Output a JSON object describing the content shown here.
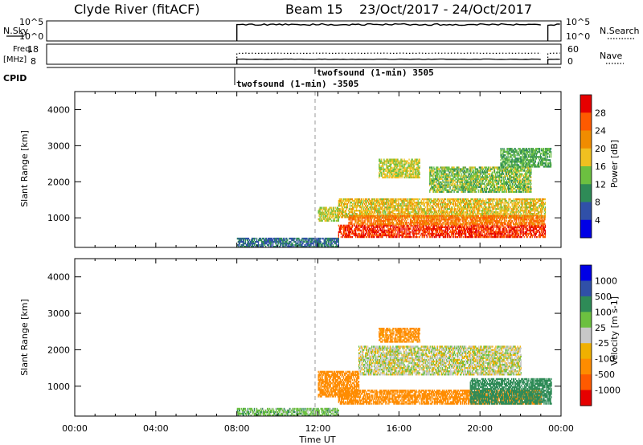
{
  "header": {
    "station": "Clyde River (fitACF)",
    "beam": "Beam 15",
    "date_range": "23/Oct/2017 - 24/Oct/2017"
  },
  "top_panels": {
    "nsky": {
      "label": "N.Sky",
      "ticks": [
        "10^5",
        "10^0"
      ],
      "right_ticks": [
        "10^5",
        "10^0"
      ],
      "right_label": "N.Search"
    },
    "freq": {
      "label": "Freq.",
      "unit": "[MHz]",
      "ticks": [
        "18",
        "8"
      ],
      "right_ticks": [
        "60",
        "0"
      ],
      "right_label": "Nave"
    },
    "cpid": {
      "label": "CPID",
      "entries": [
        "twofsound (1-min) -3505",
        "twofsound (1-min) 3505"
      ]
    }
  },
  "colors": {
    "power": [
      "#0000e6",
      "#3050a8",
      "#2e8b57",
      "#6cc040",
      "#f0c020",
      "#f08c00",
      "#ff5a00",
      "#e60000"
    ],
    "velocity": [
      "#e60000",
      "#ff5a00",
      "#ff8c00",
      "#f0b000",
      "#c8c8c8",
      "#6cc040",
      "#2e8b57",
      "#3050a8",
      "#0000e6"
    ],
    "trace": "#000000",
    "divider": "#999999"
  },
  "chart_data": [
    {
      "type": "heatmap",
      "title": "Power",
      "xlabel": "",
      "ylabel": "Slant Range [km]",
      "xlim": [
        0,
        24
      ],
      "ylim": [
        180,
        4500
      ],
      "x_ticks": [
        "00:00",
        "04:00",
        "08:00",
        "12:00",
        "16:00",
        "20:00",
        "00:00"
      ],
      "y_ticks": [
        1000,
        2000,
        3000,
        4000
      ],
      "colorbar": {
        "label": "Power [dB]",
        "ticks": [
          "4",
          "8",
          "12",
          "16",
          "20",
          "24",
          "28"
        ]
      },
      "regions": [
        {
          "x": [
            8.0,
            13.0
          ],
          "range": [
            180,
            450
          ],
          "value": 8
        },
        {
          "x": [
            12.0,
            13.0
          ],
          "range": [
            900,
            1300
          ],
          "value": 16
        },
        {
          "x": [
            13.0,
            23.2
          ],
          "range": [
            1000,
            1500
          ],
          "value": 18
        },
        {
          "x": [
            13.0,
            23.2
          ],
          "range": [
            450,
            800
          ],
          "value": 28
        },
        {
          "x": [
            13.5,
            23.2
          ],
          "range": [
            800,
            1050
          ],
          "value": 24
        },
        {
          "x": [
            15.0,
            17.0
          ],
          "range": [
            2100,
            2600
          ],
          "value": 16
        },
        {
          "x": [
            17.5,
            22.5
          ],
          "range": [
            1700,
            2400
          ],
          "value": 14
        },
        {
          "x": [
            21.0,
            23.5
          ],
          "range": [
            2400,
            2900
          ],
          "value": 12
        }
      ]
    },
    {
      "type": "heatmap",
      "title": "Velocity",
      "xlabel": "Time UT",
      "ylabel": "Slant Range [km]",
      "xlim": [
        0,
        24
      ],
      "ylim": [
        180,
        4500
      ],
      "x_ticks": [
        "00:00",
        "04:00",
        "08:00",
        "12:00",
        "16:00",
        "20:00",
        "00:00"
      ],
      "y_ticks": [
        1000,
        2000,
        3000,
        4000
      ],
      "colorbar": {
        "label": "Velocity [m s-1]",
        "ticks": [
          "1000",
          "500",
          "100",
          "25",
          "-25",
          "-100",
          "-500",
          "-1000"
        ]
      },
      "regions": [
        {
          "x": [
            8.0,
            13.0
          ],
          "range": [
            180,
            400
          ],
          "value": 60
        },
        {
          "x": [
            12.0,
            14.0
          ],
          "range": [
            700,
            1400
          ],
          "value": -300
        },
        {
          "x": [
            14.0,
            22.0
          ],
          "range": [
            1300,
            2100
          ],
          "value": 0
        },
        {
          "x": [
            13.0,
            23.0
          ],
          "range": [
            500,
            900
          ],
          "value": -300
        },
        {
          "x": [
            19.5,
            23.5
          ],
          "range": [
            500,
            1200
          ],
          "value": 300
        },
        {
          "x": [
            15.0,
            17.0
          ],
          "range": [
            2200,
            2600
          ],
          "value": -150
        }
      ]
    }
  ],
  "nsky_level": 0.82,
  "nave_level": 0.55
}
